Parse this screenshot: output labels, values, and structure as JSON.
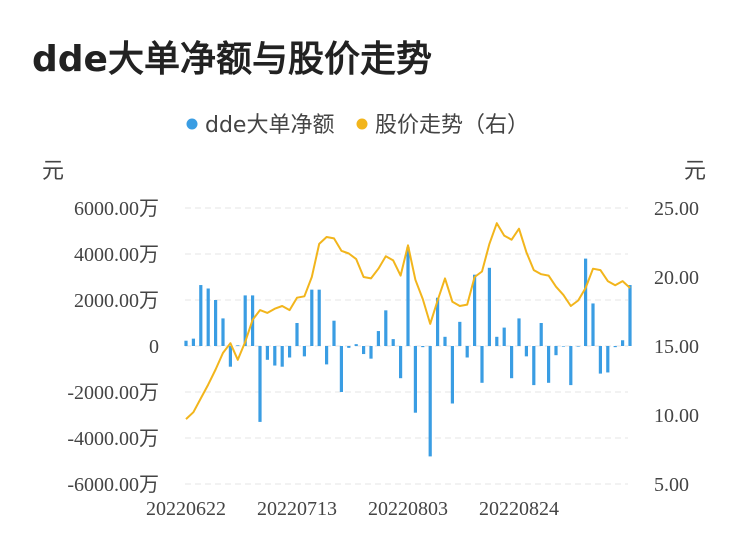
{
  "title": "dde大单净额与股价走势",
  "chart_data": {
    "type": "bar+line",
    "title": "dde大单净额与股价走势",
    "legend": [
      {
        "name": "dde大单净额",
        "color": "#3a9de3"
      },
      {
        "name": "股价走势（右）",
        "color": "#f2b51c"
      }
    ],
    "legend_position": "top-center",
    "left_unit": "元",
    "right_unit": "元",
    "left_ticks": [
      "6000.00万",
      "4000.00万",
      "2000.00万",
      "0",
      "-2000.00万",
      "-4000.00万",
      "-6000.00万"
    ],
    "right_ticks": [
      "25.00",
      "20.00",
      "15.00",
      "10.00",
      "5.00"
    ],
    "ylim_left": [
      -6000,
      6000
    ],
    "ylim_right": [
      5,
      25
    ],
    "x_tick_labels": [
      "20220622",
      "20220713",
      "20220803",
      "20220824"
    ],
    "x_tick_indices": [
      0,
      15,
      30,
      45
    ],
    "grid": true,
    "series": [
      {
        "name": "dde大单净额",
        "axis": "left",
        "type": "bar",
        "values": [
          230,
          320,
          2650,
          2500,
          2000,
          1200,
          -900,
          30,
          2200,
          2200,
          -3300,
          -600,
          -850,
          -900,
          -500,
          1000,
          -450,
          2450,
          2450,
          -800,
          1100,
          -2000,
          -80,
          80,
          -350,
          -550,
          650,
          1550,
          300,
          -1400,
          4300,
          -2900,
          -50,
          -4800,
          2100,
          400,
          -2500,
          1050,
          -500,
          3100,
          -1600,
          3400,
          400,
          800,
          -1400,
          1200,
          -450,
          -1700,
          1000,
          -1600,
          -400,
          0,
          -1700,
          0,
          3800,
          1850,
          -1200,
          -1150,
          -50,
          250,
          2650
        ]
      },
      {
        "name": "股价走势（右）",
        "axis": "right",
        "type": "line",
        "values": [
          9.7,
          10.2,
          11.2,
          12.2,
          13.3,
          14.5,
          15.2,
          14.0,
          15.3,
          16.9,
          17.6,
          17.4,
          17.7,
          17.9,
          17.6,
          18.5,
          18.6,
          20.0,
          22.4,
          22.9,
          22.8,
          21.9,
          21.7,
          21.3,
          20.0,
          19.9,
          20.6,
          21.5,
          21.2,
          20.1,
          22.3,
          19.8,
          18.4,
          16.6,
          18.3,
          19.9,
          18.2,
          17.9,
          18.0,
          20.0,
          20.4,
          22.4,
          23.9,
          23.0,
          22.7,
          23.5,
          21.8,
          20.5,
          20.2,
          20.1,
          19.3,
          18.7,
          17.9,
          18.3,
          19.2,
          20.6,
          20.5,
          19.7,
          19.4,
          19.7,
          19.2
        ]
      }
    ]
  }
}
